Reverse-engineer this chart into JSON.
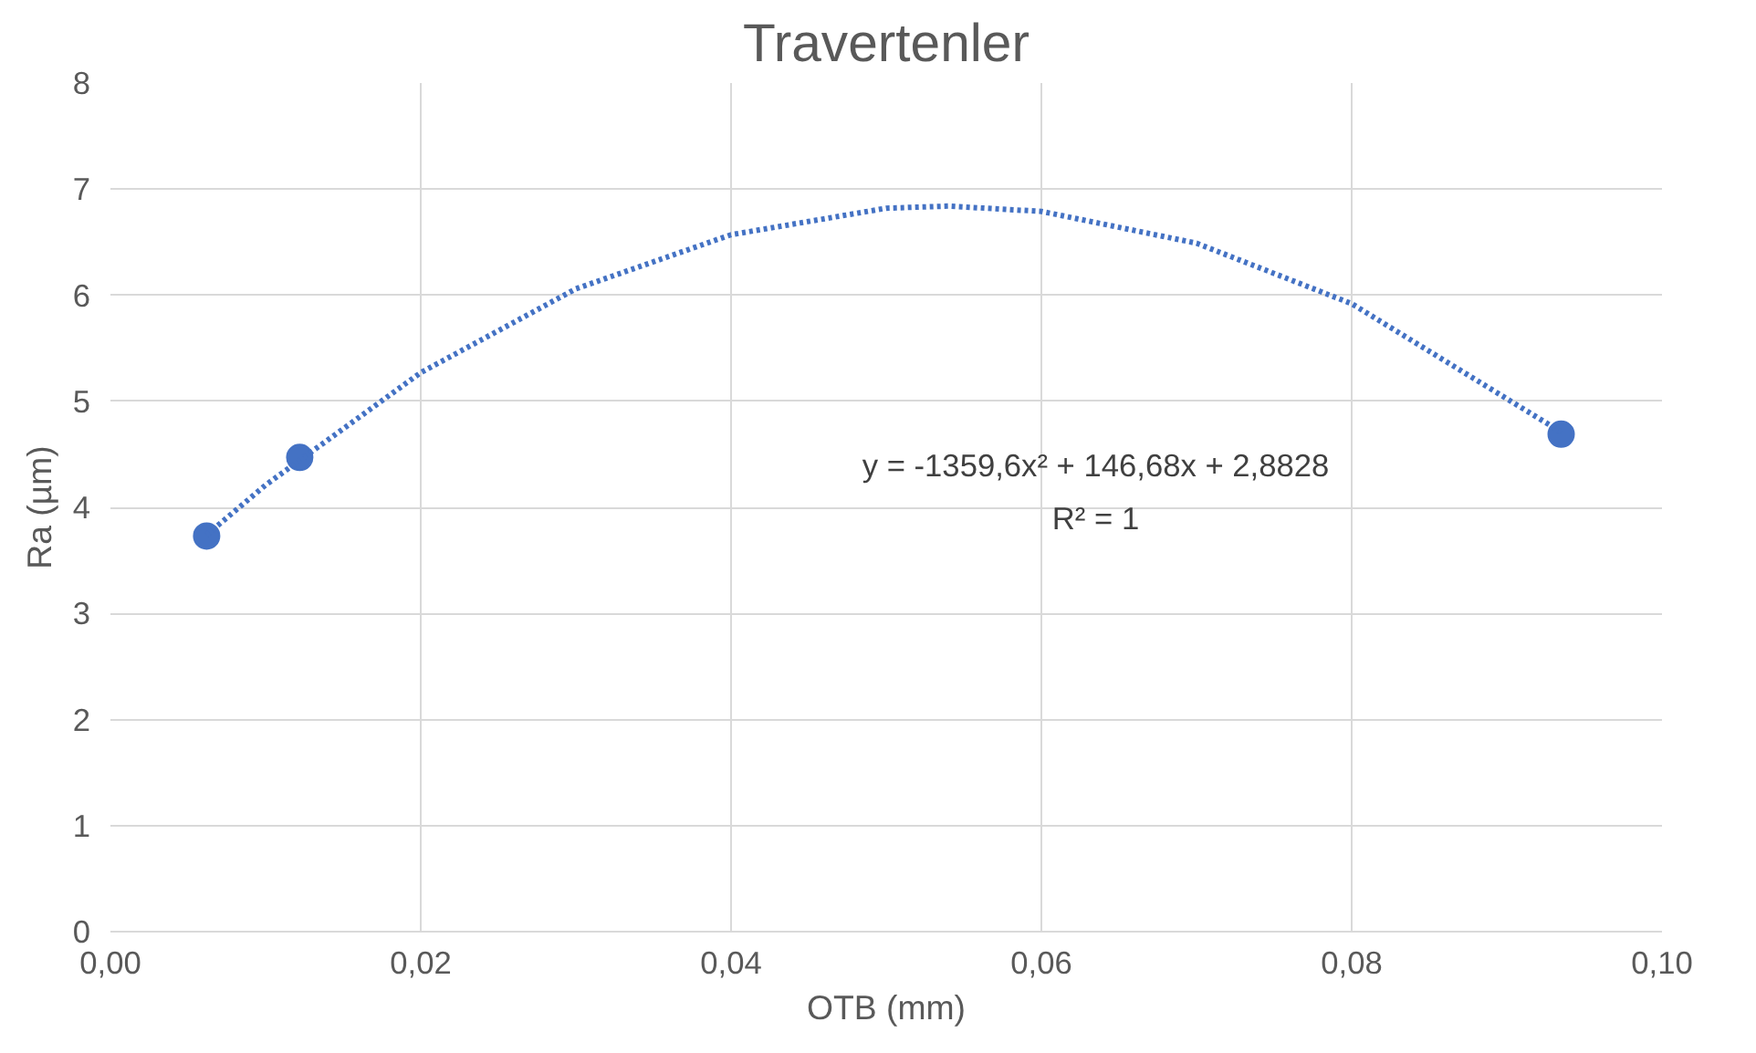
{
  "chart_data": {
    "type": "scatter",
    "title": "Travertenler",
    "xlabel": "OTB (mm)",
    "ylabel": "Ra (µm)",
    "xlim": [
      0,
      0.1
    ],
    "ylim": [
      0,
      8
    ],
    "xticks": [
      {
        "value": 0,
        "label": "0,00"
      },
      {
        "value": 0.02,
        "label": "0,02"
      },
      {
        "value": 0.04,
        "label": "0,04"
      },
      {
        "value": 0.06,
        "label": "0,06"
      },
      {
        "value": 0.08,
        "label": "0,08"
      },
      {
        "value": 0.1,
        "label": "0,10"
      }
    ],
    "yticks": [
      0,
      1,
      2,
      3,
      4,
      5,
      6,
      7,
      8
    ],
    "grid": true,
    "marker": "circle",
    "series": [
      {
        "color": "#4472c4",
        "x": [
          0.0062,
          0.0122,
          0.0935
        ],
        "values": [
          3.73,
          4.47,
          4.69
        ]
      },
      {
        "type": "line",
        "color": "#4472c4",
        "line_style": "dotted",
        "marker": "none",
        "x": [
          0.0062,
          0.01,
          0.02,
          0.03,
          0.04,
          0.05,
          0.054,
          0.06,
          0.07,
          0.08,
          0.0935
        ],
        "values": [
          3.74,
          4.21,
          5.27,
          6.06,
          6.57,
          6.82,
          6.84,
          6.79,
          6.49,
          5.92,
          4.71
        ]
      }
    ],
    "annotations": [
      "y = -1359,6x² + 146,68x + 2,8828",
      "R² = 1"
    ]
  }
}
